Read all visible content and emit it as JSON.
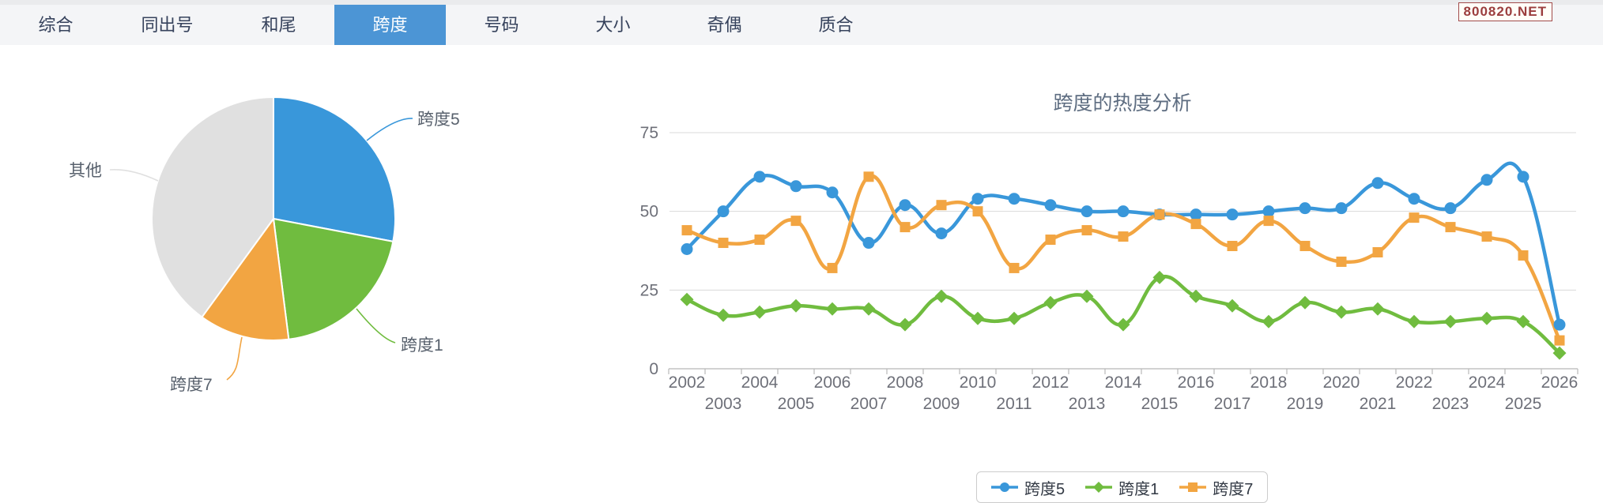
{
  "tabs": {
    "active_label": "跨度",
    "items": [
      {
        "label": "综合"
      },
      {
        "label": "同出号"
      },
      {
        "label": "和尾"
      },
      {
        "label": "跨度"
      },
      {
        "label": "号码"
      },
      {
        "label": "大小"
      },
      {
        "label": "奇偶"
      },
      {
        "label": "质合"
      }
    ]
  },
  "watermark": {
    "text": "800820.NET"
  },
  "colors": {
    "accent_blue": "#3997da",
    "accent_green": "#70bc3f",
    "accent_orange": "#f2a542",
    "slice_gray": "#e0e0e0",
    "active_tab": "#4c95d5"
  },
  "chart_data": [
    {
      "type": "pie",
      "description": "跨度占比",
      "slices": [
        {
          "name": "跨度5",
          "percent": 28,
          "color": "#3997da"
        },
        {
          "name": "跨度1",
          "percent": 20,
          "color": "#70bc3f"
        },
        {
          "name": "跨度7",
          "percent": 12,
          "color": "#f2a542"
        },
        {
          "name": "其他",
          "percent": 40,
          "color": "#e0e0e0"
        }
      ]
    },
    {
      "type": "line",
      "title": "跨度的热度分析",
      "categories": [
        "2002",
        "2003",
        "2004",
        "2005",
        "2006",
        "2007",
        "2008",
        "2009",
        "2010",
        "2011",
        "2012",
        "2013",
        "2014",
        "2015",
        "2016",
        "2017",
        "2018",
        "2019",
        "2020",
        "2021",
        "2022",
        "2023",
        "2024",
        "2025",
        "2026"
      ],
      "ylim": [
        0,
        75
      ],
      "y_ticks": [
        0,
        25,
        50,
        75
      ],
      "grid": true,
      "legend_position": "bottom-center",
      "smooth": true,
      "series": [
        {
          "name": "跨度5",
          "color": "#3997da",
          "symbol": "circle",
          "values": [
            38,
            50,
            61,
            58,
            56,
            40,
            52,
            43,
            54,
            54,
            52,
            50,
            50,
            49,
            49,
            49,
            50,
            51,
            51,
            59,
            54,
            51,
            60,
            61,
            14
          ]
        },
        {
          "name": "跨度1",
          "color": "#70bc3f",
          "symbol": "diamond",
          "values": [
            22,
            17,
            18,
            20,
            19,
            19,
            14,
            23,
            16,
            16,
            21,
            23,
            14,
            29,
            23,
            20,
            15,
            21,
            18,
            19,
            15,
            15,
            16,
            15,
            5
          ]
        },
        {
          "name": "跨度7",
          "color": "#f2a542",
          "symbol": "square",
          "values": [
            44,
            40,
            41,
            47,
            32,
            61,
            45,
            52,
            50,
            32,
            41,
            44,
            42,
            49,
            46,
            39,
            47,
            39,
            34,
            37,
            48,
            45,
            42,
            36,
            9
          ]
        }
      ]
    }
  ]
}
